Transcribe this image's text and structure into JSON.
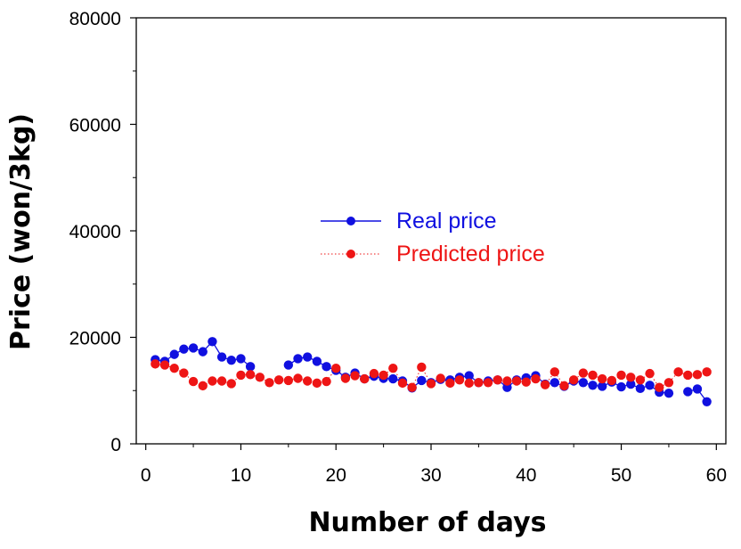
{
  "chart_data": {
    "type": "line",
    "title": "",
    "xlabel": "Number of days",
    "ylabel": "Price (won/3kg)",
    "xlim": [
      -1,
      61
    ],
    "ylim": [
      0,
      80000
    ],
    "x_ticks": [
      0,
      10,
      20,
      30,
      40,
      50,
      60
    ],
    "y_ticks": [
      0,
      20000,
      40000,
      60000,
      80000
    ],
    "x_tick_labels": [
      "0",
      "10",
      "20",
      "30",
      "40",
      "50",
      "60"
    ],
    "y_tick_labels": [
      "0",
      "20000",
      "40000",
      "60000",
      "80000"
    ],
    "grid": false,
    "legend_position": "center",
    "series": [
      {
        "name": "Real price",
        "color": "#1010e0",
        "line_style": "solid",
        "segments": [
          [
            [
              1,
              15800
            ],
            [
              2,
              15500
            ],
            [
              3,
              16800
            ],
            [
              4,
              17800
            ],
            [
              5,
              18000
            ],
            [
              6,
              17300
            ],
            [
              7,
              19200
            ],
            [
              8,
              16300
            ],
            [
              9,
              15700
            ],
            [
              10,
              16000
            ],
            [
              11,
              14500
            ]
          ],
          [
            [
              15,
              14800
            ],
            [
              16,
              16000
            ],
            [
              17,
              16300
            ],
            [
              18,
              15500
            ],
            [
              19,
              14500
            ],
            [
              20,
              13800
            ],
            [
              21,
              12500
            ],
            [
              22,
              13300
            ],
            [
              23,
              12200
            ],
            [
              24,
              12700
            ],
            [
              25,
              12300
            ],
            [
              26,
              12200
            ],
            [
              27,
              11800
            ],
            [
              28,
              10500
            ],
            [
              29,
              11900
            ],
            [
              30,
              11500
            ],
            [
              31,
              12100
            ],
            [
              32,
              12000
            ],
            [
              33,
              12500
            ],
            [
              34,
              12800
            ],
            [
              35,
              11500
            ],
            [
              36,
              11800
            ],
            [
              37,
              12000
            ],
            [
              38,
              10600
            ],
            [
              39,
              12000
            ],
            [
              40,
              12400
            ],
            [
              41,
              12800
            ],
            [
              42,
              11200
            ],
            [
              43,
              11500
            ],
            [
              44,
              10800
            ],
            [
              45,
              11800
            ],
            [
              46,
              11500
            ],
            [
              47,
              11000
            ],
            [
              48,
              10800
            ],
            [
              49,
              11600
            ],
            [
              50,
              10700
            ],
            [
              51,
              11200
            ],
            [
              52,
              10400
            ],
            [
              53,
              11000
            ],
            [
              54,
              9700
            ],
            [
              55,
              9500
            ]
          ],
          [
            [
              57,
              9800
            ],
            [
              58,
              10300
            ],
            [
              59,
              7900
            ]
          ]
        ]
      },
      {
        "name": "Predicted price",
        "color": "#ee1515",
        "line_style": "dotted",
        "points": [
          [
            1,
            15000
          ],
          [
            2,
            14800
          ],
          [
            3,
            14200
          ],
          [
            4,
            13300
          ],
          [
            5,
            11700
          ],
          [
            6,
            10900
          ],
          [
            7,
            11800
          ],
          [
            8,
            11800
          ],
          [
            9,
            11300
          ],
          [
            10,
            12900
          ],
          [
            11,
            13000
          ],
          [
            12,
            12500
          ],
          [
            13,
            11500
          ],
          [
            14,
            12000
          ],
          [
            15,
            11900
          ],
          [
            16,
            12300
          ],
          [
            17,
            11800
          ],
          [
            18,
            11400
          ],
          [
            19,
            11700
          ],
          [
            20,
            14200
          ],
          [
            21,
            12300
          ],
          [
            22,
            12800
          ],
          [
            23,
            12200
          ],
          [
            24,
            13200
          ],
          [
            25,
            12900
          ],
          [
            26,
            14200
          ],
          [
            27,
            11400
          ],
          [
            28,
            10600
          ],
          [
            29,
            14400
          ],
          [
            30,
            11300
          ],
          [
            31,
            12300
          ],
          [
            32,
            11400
          ],
          [
            33,
            12000
          ],
          [
            34,
            11400
          ],
          [
            35,
            11500
          ],
          [
            36,
            11500
          ],
          [
            37,
            12000
          ],
          [
            38,
            11800
          ],
          [
            39,
            11800
          ],
          [
            40,
            11600
          ],
          [
            41,
            12200
          ],
          [
            42,
            11100
          ],
          [
            43,
            13500
          ],
          [
            44,
            10900
          ],
          [
            45,
            12000
          ],
          [
            46,
            13300
          ],
          [
            47,
            12900
          ],
          [
            48,
            12200
          ],
          [
            49,
            11900
          ],
          [
            50,
            12900
          ],
          [
            51,
            12500
          ],
          [
            52,
            12000
          ],
          [
            53,
            13200
          ],
          [
            54,
            10600
          ],
          [
            55,
            11500
          ],
          [
            56,
            13500
          ],
          [
            57,
            12900
          ],
          [
            58,
            13000
          ],
          [
            59,
            13500
          ]
        ]
      }
    ]
  }
}
